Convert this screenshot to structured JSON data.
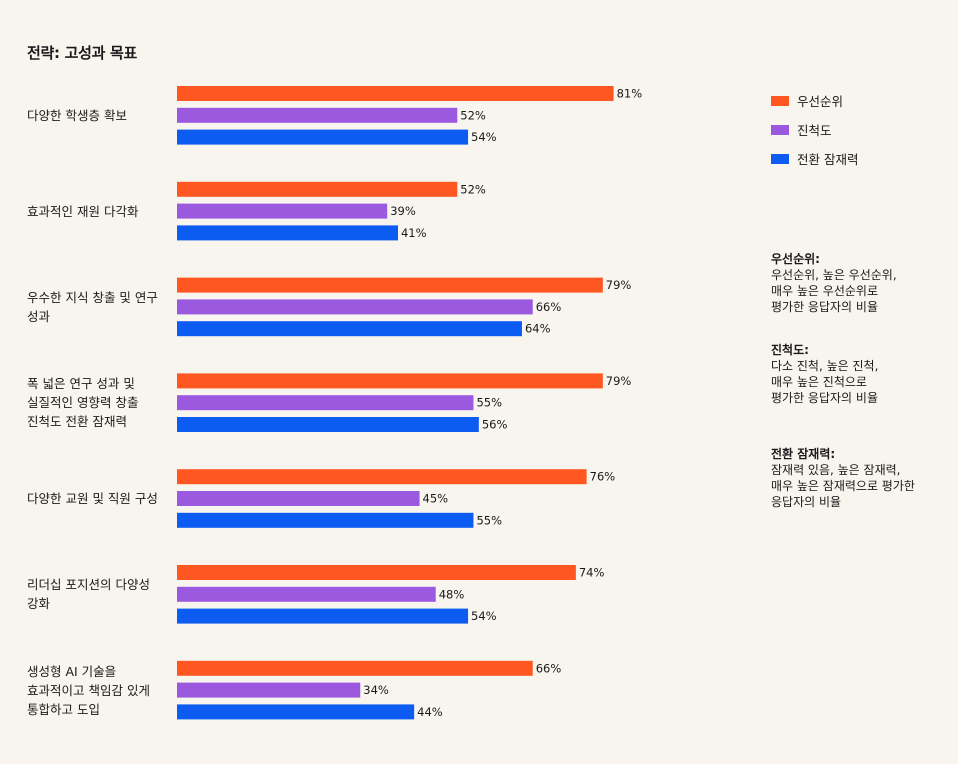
{
  "chart_data": {
    "type": "bar",
    "orientation": "horizontal",
    "title": "전략: 고성과 목표",
    "categories": [
      "다양한 학생층 확보",
      "효과적인 재원 다각화",
      "우수한 지식 창출 및 연구 성과",
      "폭 넓은 연구 성과 및 실질적인 영향력 창출 진척도 전환 잠재력",
      "다양한 교원 및 직원 구성",
      "리더십 포지션의 다양성 강화",
      "생성형 AI 기술을 효과적이고 책임감 있게 통합하고 도입"
    ],
    "category_lines": [
      [
        "다양한 학생층 확보"
      ],
      [
        "효과적인 재원 다각화"
      ],
      [
        "우수한 지식 창출 및 연구",
        "성과"
      ],
      [
        "폭 넓은 연구 성과 및",
        "실질적인 영향력 창출",
        "진척도 전환 잠재력"
      ],
      [
        "다양한 교원 및 직원 구성"
      ],
      [
        "리더십 포지션의 다양성",
        "강화"
      ],
      [
        "생성형 AI 기술을",
        "효과적이고 책임감 있게",
        "통합하고 도입"
      ]
    ],
    "series": [
      {
        "name": "우선순위",
        "color": "#ff5722",
        "values": [
          81,
          52,
          79,
          79,
          76,
          74,
          66
        ]
      },
      {
        "name": "진척도",
        "color": "#9b59e0",
        "values": [
          52,
          39,
          66,
          55,
          45,
          48,
          34
        ]
      },
      {
        "name": "전환 잠재력",
        "color": "#0d5cf2",
        "values": [
          54,
          41,
          64,
          56,
          55,
          54,
          44
        ]
      }
    ],
    "value_suffix": "%",
    "xlim": [
      0,
      100
    ],
    "grid": false,
    "legend": "top-right"
  },
  "notes": [
    {
      "title": "우선순위:",
      "lines": [
        "우선순위, 높은 우선순위,",
        "매우 높은 우선순위로",
        "평가한 응답자의 비율"
      ]
    },
    {
      "title": "진척도:",
      "lines": [
        "다소 진척, 높은 진척,",
        "매우 높은 진척으로",
        "평가한 응답자의 비율"
      ]
    },
    {
      "title": "전환 잠재력:",
      "lines": [
        "잠재력 있음, 높은 잠재력,",
        "매우 높은 잠재력으로 평가한",
        "응답자의 비율"
      ]
    }
  ]
}
